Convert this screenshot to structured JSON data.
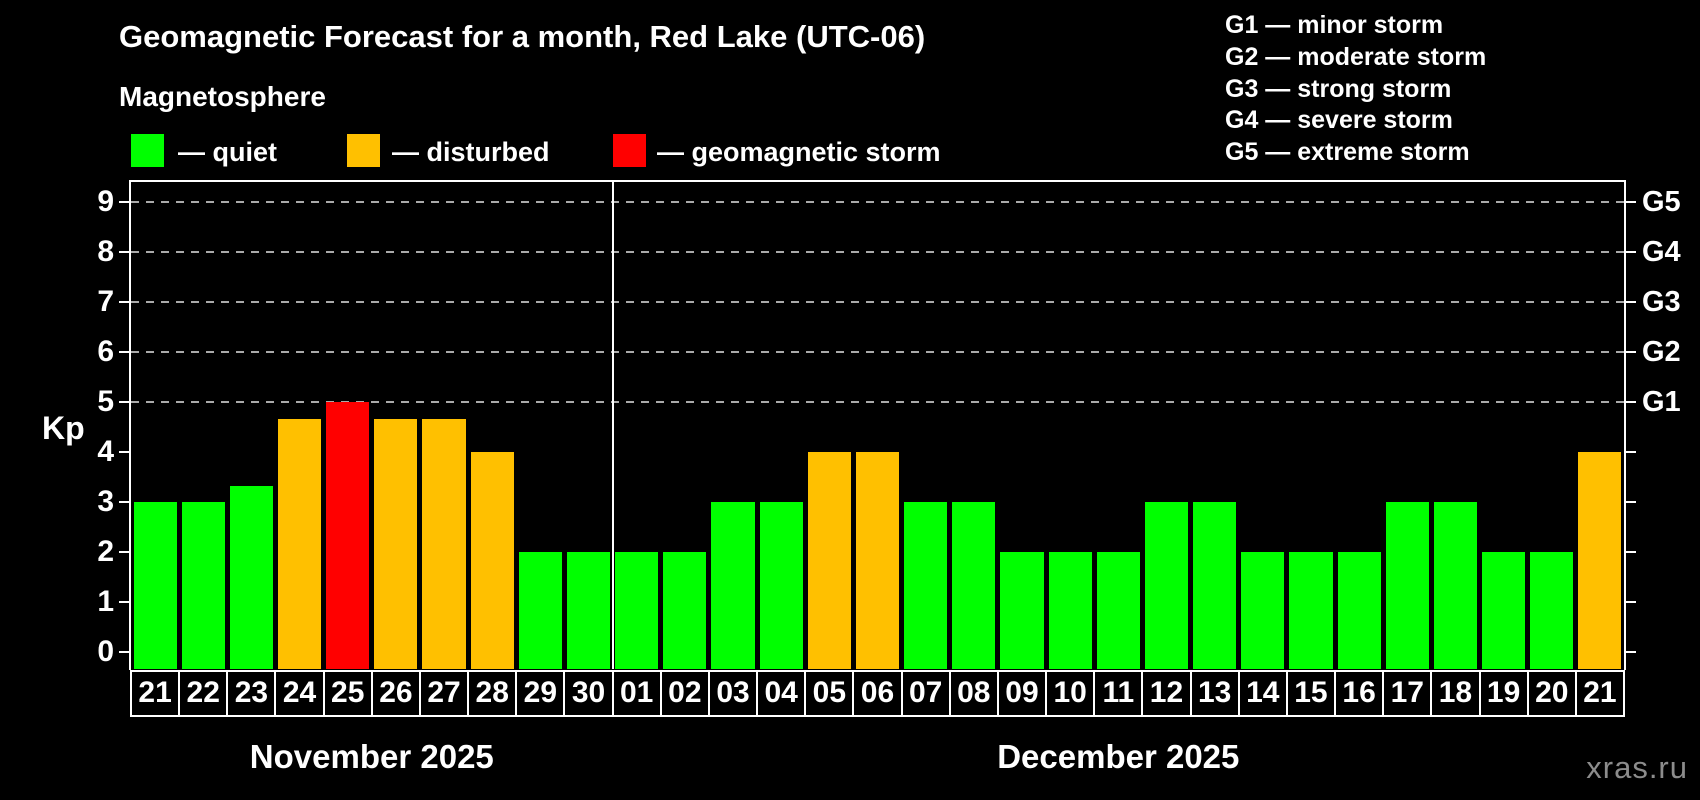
{
  "title": "Geomagnetic Forecast for a month, Red Lake (UTC-06)",
  "subtitle": "Magnetosphere",
  "legend": {
    "items": [
      {
        "name": "quiet",
        "label": "— quiet"
      },
      {
        "name": "disturbed",
        "label": "— disturbed"
      },
      {
        "name": "storm",
        "label": "— geomagnetic storm"
      }
    ]
  },
  "g_legend": [
    "G1 — minor storm",
    "G2 — moderate storm",
    "G3 — strong storm",
    "G4 — severe storm",
    "G5 — extreme storm"
  ],
  "watermark": "xras.ru",
  "chart_data": {
    "type": "bar",
    "ylabel": "Kp",
    "ylim": [
      0,
      9.4
    ],
    "yticks": [
      0,
      1,
      2,
      3,
      4,
      5,
      6,
      7,
      8,
      9
    ],
    "gridlines_at": [
      5,
      6,
      7,
      8,
      9
    ],
    "grid": true,
    "legend_position": "top",
    "g_levels": [
      {
        "label": "G1",
        "kp": 5
      },
      {
        "label": "G2",
        "kp": 6
      },
      {
        "label": "G3",
        "kp": 7
      },
      {
        "label": "G4",
        "kp": 8
      },
      {
        "label": "G5",
        "kp": 9
      }
    ],
    "colors": {
      "quiet": "#00ff00",
      "disturbed": "#ffc000",
      "storm": "#ff0000"
    },
    "months": [
      {
        "label": "November 2025",
        "days": [
          {
            "day": "21",
            "kp": 3,
            "state": "quiet"
          },
          {
            "day": "22",
            "kp": 3,
            "state": "quiet"
          },
          {
            "day": "23",
            "kp": 3.33,
            "state": "quiet"
          },
          {
            "day": "24",
            "kp": 4.67,
            "state": "disturbed"
          },
          {
            "day": "25",
            "kp": 5,
            "state": "storm"
          },
          {
            "day": "26",
            "kp": 4.67,
            "state": "disturbed"
          },
          {
            "day": "27",
            "kp": 4.67,
            "state": "disturbed"
          },
          {
            "day": "28",
            "kp": 4,
            "state": "disturbed"
          },
          {
            "day": "29",
            "kp": 2,
            "state": "quiet"
          },
          {
            "day": "30",
            "kp": 2,
            "state": "quiet"
          }
        ]
      },
      {
        "label": "December 2025",
        "days": [
          {
            "day": "01",
            "kp": 2,
            "state": "quiet"
          },
          {
            "day": "02",
            "kp": 2,
            "state": "quiet"
          },
          {
            "day": "03",
            "kp": 3,
            "state": "quiet"
          },
          {
            "day": "04",
            "kp": 3,
            "state": "quiet"
          },
          {
            "day": "05",
            "kp": 4,
            "state": "disturbed"
          },
          {
            "day": "06",
            "kp": 4,
            "state": "disturbed"
          },
          {
            "day": "07",
            "kp": 3,
            "state": "quiet"
          },
          {
            "day": "08",
            "kp": 3,
            "state": "quiet"
          },
          {
            "day": "09",
            "kp": 2,
            "state": "quiet"
          },
          {
            "day": "10",
            "kp": 2,
            "state": "quiet"
          },
          {
            "day": "11",
            "kp": 2,
            "state": "quiet"
          },
          {
            "day": "12",
            "kp": 3,
            "state": "quiet"
          },
          {
            "day": "13",
            "kp": 3,
            "state": "quiet"
          },
          {
            "day": "14",
            "kp": 2,
            "state": "quiet"
          },
          {
            "day": "15",
            "kp": 2,
            "state": "quiet"
          },
          {
            "day": "16",
            "kp": 2,
            "state": "quiet"
          },
          {
            "day": "17",
            "kp": 3,
            "state": "quiet"
          },
          {
            "day": "18",
            "kp": 3,
            "state": "quiet"
          },
          {
            "day": "19",
            "kp": 2,
            "state": "quiet"
          },
          {
            "day": "20",
            "kp": 2,
            "state": "quiet"
          },
          {
            "day": "21",
            "kp": 4,
            "state": "disturbed"
          }
        ]
      }
    ]
  }
}
